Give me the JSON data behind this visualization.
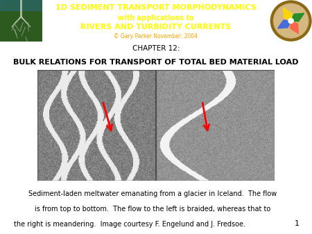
{
  "header_bg_color": "#2B3D8F",
  "header_text1": "1D SEDIMENT TRANSPORT MORPHODYNAMICS",
  "header_text2": "with applications to",
  "header_text3": "RIVERS AND TURBIDITY CURRENTS",
  "header_text4": "© Gary Parker November, 2004",
  "header_text1_color": "#FFFF00",
  "header_text2_color": "#FFFF00",
  "header_text3_color": "#FFFF00",
  "header_text4_color": "#FFA500",
  "chapter_line1": "CHAPTER 12:",
  "chapter_line2": "BULK RELATIONS FOR TRANSPORT OF TOTAL BED MATERIAL LOAD",
  "caption_line1": "Sediment-laden meltwater emanating from a glacier in Iceland.  The flow",
  "caption_line2": "is from top to bottom.  The flow to the left is braided, whereas that to",
  "caption_line3": "the right is meandering.  Image courtesy F. Engelund and J. Fredsoe.",
  "page_number": "1",
  "bg_color": "#FFFFFF",
  "left_panel_bg": "#4a5a4a",
  "right_panel_bg": "#6a7a6a"
}
